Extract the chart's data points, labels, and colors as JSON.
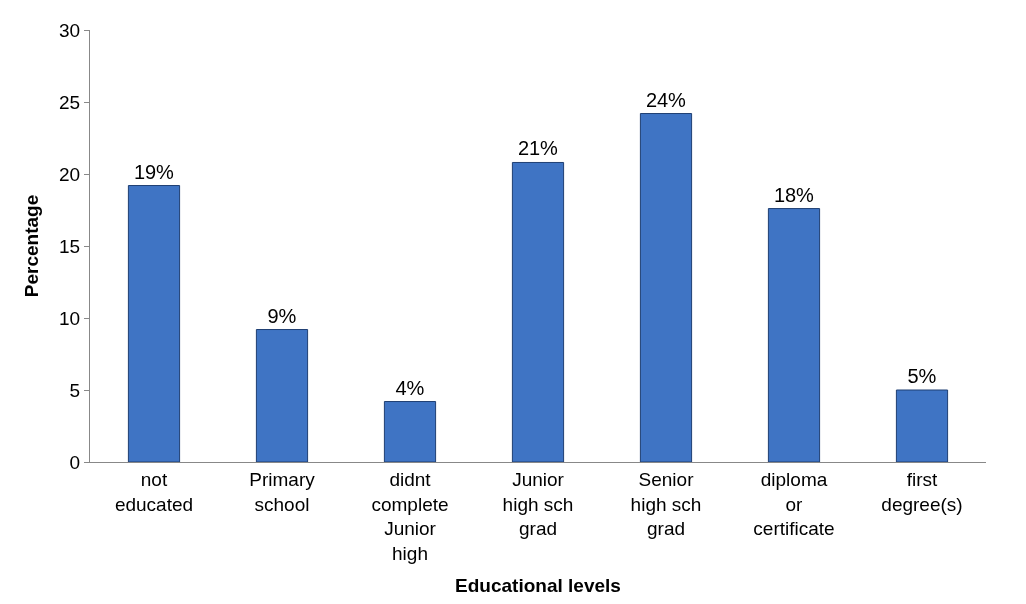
{
  "chart_data": {
    "type": "bar",
    "xlabel": "Educational levels",
    "ylabel": "Percentage",
    "categories": [
      "not educated",
      "Primary school",
      "didnt complete Junior high",
      "Junior high sch grad",
      "Senior high sch grad",
      "diploma or certificate",
      "first degree(s)"
    ],
    "values": [
      19.2,
      9.2,
      4.2,
      20.8,
      24.2,
      17.6,
      5.0
    ],
    "value_labels": [
      "19%",
      "9%",
      "4%",
      "21%",
      "24%",
      "18%",
      "5%"
    ],
    "color": "#3f74c4",
    "ylim": [
      0,
      30
    ],
    "yticks": [
      0,
      5,
      10,
      15,
      20,
      25,
      30
    ],
    "legend": false
  }
}
